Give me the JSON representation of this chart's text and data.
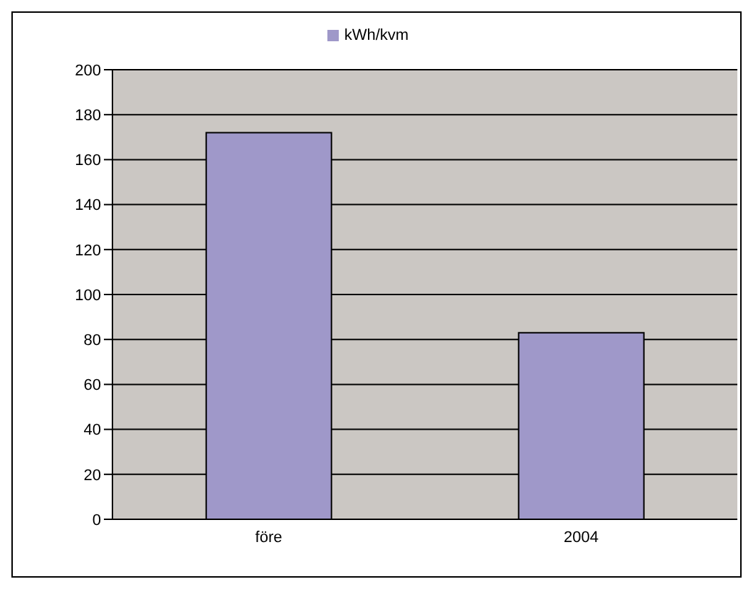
{
  "chart_data": {
    "type": "bar",
    "categories": [
      "före",
      "2004"
    ],
    "series": [
      {
        "name": "kWh/kvm",
        "color": "#9f98c9",
        "values": [
          172,
          83
        ]
      }
    ],
    "ylim": [
      0,
      200
    ],
    "yticks": [
      0,
      20,
      40,
      60,
      80,
      100,
      120,
      140,
      160,
      180,
      200
    ],
    "grid": "y",
    "legend": "top"
  }
}
